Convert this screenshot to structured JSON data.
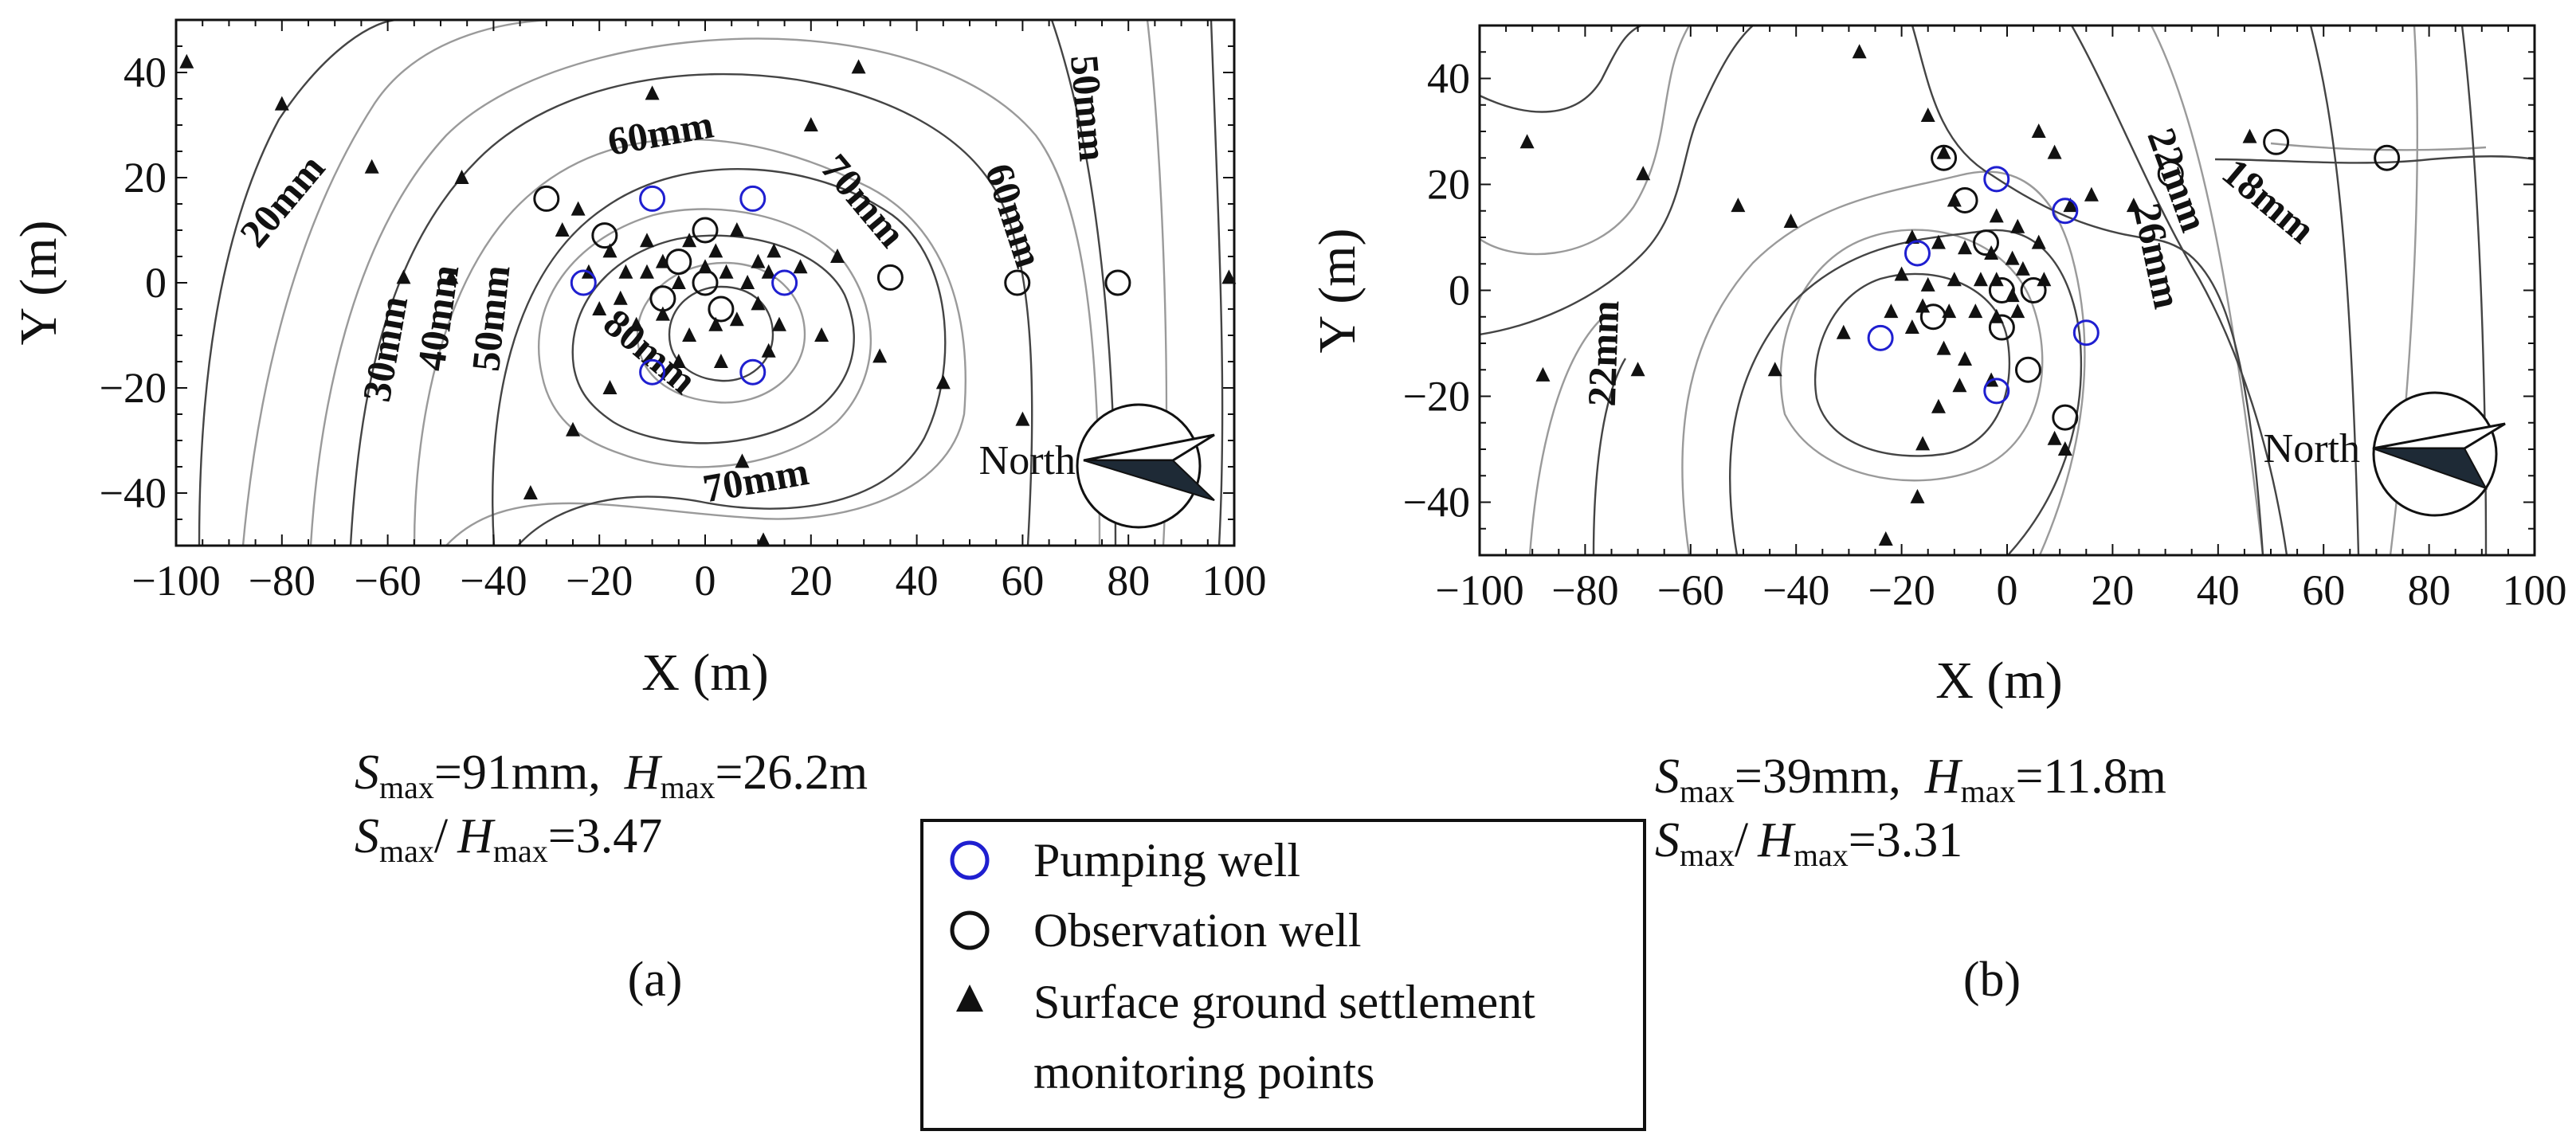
{
  "chart_data": [
    {
      "type": "contour",
      "panel_label": "(a)",
      "xlabel": "X (m)",
      "ylabel": "Y (m)",
      "xlim": [
        -100,
        100
      ],
      "ylim": [
        -50,
        50
      ],
      "xticks": [
        -100,
        -80,
        -60,
        -40,
        -20,
        0,
        20,
        40,
        60,
        80,
        100
      ],
      "yticks": [
        -40,
        -20,
        0,
        20,
        40
      ],
      "contour_labels": [
        {
          "text": "20mm",
          "x": -78,
          "y": 14,
          "angle": -50
        },
        {
          "text": "30mm",
          "x": -58,
          "y": -13,
          "angle": -80
        },
        {
          "text": "40mm",
          "x": -48,
          "y": -7,
          "angle": -82
        },
        {
          "text": "50mm",
          "x": -38,
          "y": -7,
          "angle": -84
        },
        {
          "text": "60mm",
          "x": -8,
          "y": 26,
          "angle": -10
        },
        {
          "text": "70mm",
          "x": 28,
          "y": 14,
          "angle": 50
        },
        {
          "text": "80mm",
          "x": -12,
          "y": -15,
          "angle": 40
        },
        {
          "text": "70mm",
          "x": 10,
          "y": -40,
          "angle": -10
        },
        {
          "text": "60mm",
          "x": 56,
          "y": 12,
          "angle": 72
        },
        {
          "text": "50mm",
          "x": 70,
          "y": 33,
          "angle": 85
        }
      ],
      "pumping_wells": [
        [
          -10,
          16
        ],
        [
          9,
          16
        ],
        [
          -23,
          0
        ],
        [
          15,
          0
        ],
        [
          -10,
          -17
        ],
        [
          9,
          -17
        ]
      ],
      "observation_wells": [
        [
          -30,
          16
        ],
        [
          -19,
          9
        ],
        [
          -5,
          4
        ],
        [
          0,
          10
        ],
        [
          -8,
          -3
        ],
        [
          0,
          0
        ],
        [
          3,
          -5
        ],
        [
          35,
          1
        ],
        [
          59,
          0
        ],
        [
          78,
          0
        ]
      ],
      "settlement_points": [
        [
          -98,
          42
        ],
        [
          -80,
          34
        ],
        [
          -63,
          22
        ],
        [
          -46,
          20
        ],
        [
          -24,
          14
        ],
        [
          -27,
          10
        ],
        [
          -18,
          6
        ],
        [
          -11,
          8
        ],
        [
          -8,
          4
        ],
        [
          -3,
          8
        ],
        [
          2,
          6
        ],
        [
          6,
          10
        ],
        [
          10,
          4
        ],
        [
          13,
          6
        ],
        [
          20,
          30
        ],
        [
          29,
          41
        ],
        [
          -10,
          36
        ],
        [
          -22,
          2
        ],
        [
          -15,
          2
        ],
        [
          -11,
          2
        ],
        [
          -5,
          0
        ],
        [
          0,
          3
        ],
        [
          4,
          2
        ],
        [
          8,
          0
        ],
        [
          12,
          2
        ],
        [
          18,
          3
        ],
        [
          25,
          5
        ],
        [
          -20,
          -5
        ],
        [
          -16,
          -3
        ],
        [
          -13,
          -8
        ],
        [
          -8,
          -6
        ],
        [
          -3,
          -10
        ],
        [
          2,
          -8
        ],
        [
          6,
          -7
        ],
        [
          10,
          -4
        ],
        [
          14,
          -8
        ],
        [
          22,
          -10
        ],
        [
          33,
          -14
        ],
        [
          -18,
          -20
        ],
        [
          -25,
          -28
        ],
        [
          -33,
          -40
        ],
        [
          7,
          -34
        ],
        [
          11,
          -49
        ],
        [
          45,
          -19
        ],
        [
          60,
          -26
        ],
        [
          -57,
          1
        ],
        [
          -48,
          1
        ],
        [
          99,
          1
        ],
        [
          -5,
          -15
        ],
        [
          3,
          -15
        ],
        [
          12,
          -13
        ]
      ],
      "north_arrow_label": "North",
      "annotations": {
        "smax": "=91mm",
        "hmax": "=26.2m",
        "ratio": "=3.47"
      }
    },
    {
      "type": "contour",
      "panel_label": "(b)",
      "xlabel": "X (m)",
      "ylabel": "Y (m)",
      "xlim": [
        -100,
        100
      ],
      "ylim": [
        -50,
        50
      ],
      "xticks": [
        -100,
        -80,
        -60,
        -40,
        -20,
        0,
        20,
        40,
        60,
        80,
        100
      ],
      "yticks": [
        -40,
        -20,
        0,
        20,
        40
      ],
      "contour_labels": [
        {
          "text": "22mm",
          "x": -74,
          "y": -12,
          "angle": -88
        },
        {
          "text": "22mm",
          "x": 30,
          "y": 20,
          "angle": 70
        },
        {
          "text": "26mm",
          "x": 26,
          "y": 6,
          "angle": 78
        },
        {
          "text": "18mm",
          "x": 48,
          "y": 15,
          "angle": 40
        }
      ],
      "pumping_wells": [
        [
          -2,
          21
        ],
        [
          11,
          15
        ],
        [
          -17,
          7
        ],
        [
          -24,
          -9
        ],
        [
          15,
          -8
        ],
        [
          -2,
          -19
        ]
      ],
      "observation_wells": [
        [
          -12,
          25
        ],
        [
          -8,
          17
        ],
        [
          -4,
          9
        ],
        [
          -14,
          -5
        ],
        [
          -1,
          0
        ],
        [
          5,
          0
        ],
        [
          -1,
          -7
        ],
        [
          4,
          -15
        ],
        [
          11,
          -24
        ],
        [
          31,
          22
        ],
        [
          51,
          28
        ],
        [
          72,
          25
        ]
      ],
      "settlement_points": [
        [
          -91,
          28
        ],
        [
          -69,
          22
        ],
        [
          -51,
          16
        ],
        [
          -41,
          13
        ],
        [
          -28,
          45
        ],
        [
          -15,
          33
        ],
        [
          -12,
          26
        ],
        [
          -10,
          17
        ],
        [
          6,
          30
        ],
        [
          9,
          26
        ],
        [
          -2,
          14
        ],
        [
          2,
          12
        ],
        [
          6,
          9
        ],
        [
          -18,
          10
        ],
        [
          -13,
          9
        ],
        [
          -8,
          8
        ],
        [
          -3,
          7
        ],
        [
          1,
          6
        ],
        [
          3,
          4
        ],
        [
          7,
          2
        ],
        [
          -20,
          3
        ],
        [
          -15,
          1
        ],
        [
          -10,
          2
        ],
        [
          -5,
          2
        ],
        [
          -2,
          2
        ],
        [
          1,
          -1
        ],
        [
          -22,
          -4
        ],
        [
          -16,
          -3
        ],
        [
          -11,
          -4
        ],
        [
          -6,
          -4
        ],
        [
          -2,
          -5
        ],
        [
          2,
          -4
        ],
        [
          -18,
          -7
        ],
        [
          -12,
          -11
        ],
        [
          -8,
          -13
        ],
        [
          -3,
          -17
        ],
        [
          -9,
          -18
        ],
        [
          -13,
          -22
        ],
        [
          -16,
          -29
        ],
        [
          -17,
          -39
        ],
        [
          -23,
          -47
        ],
        [
          -31,
          -8
        ],
        [
          -44,
          -15
        ],
        [
          -70,
          -15
        ],
        [
          -88,
          -16
        ],
        [
          9,
          -28
        ],
        [
          11,
          -30
        ],
        [
          12,
          16
        ],
        [
          16,
          18
        ],
        [
          24,
          16
        ],
        [
          46,
          29
        ]
      ],
      "north_arrow_label": "North",
      "annotations": {
        "smax": "=39mm",
        "hmax": "=11.8m",
        "ratio": "=3.31"
      }
    }
  ],
  "text": {
    "s": "S",
    "h": "H",
    "max": "max",
    "comma": ",",
    "slash": "/"
  },
  "legend": {
    "pumping": "Pumping well",
    "observation": "Observation well",
    "settlement_line1": "Surface ground settlement",
    "settlement_line2": "monitoring points"
  },
  "colors": {
    "pumping": "#1f1fd0",
    "ink": "#111111",
    "contour_dark": "#444444",
    "contour_light": "#9a9a9a"
  }
}
